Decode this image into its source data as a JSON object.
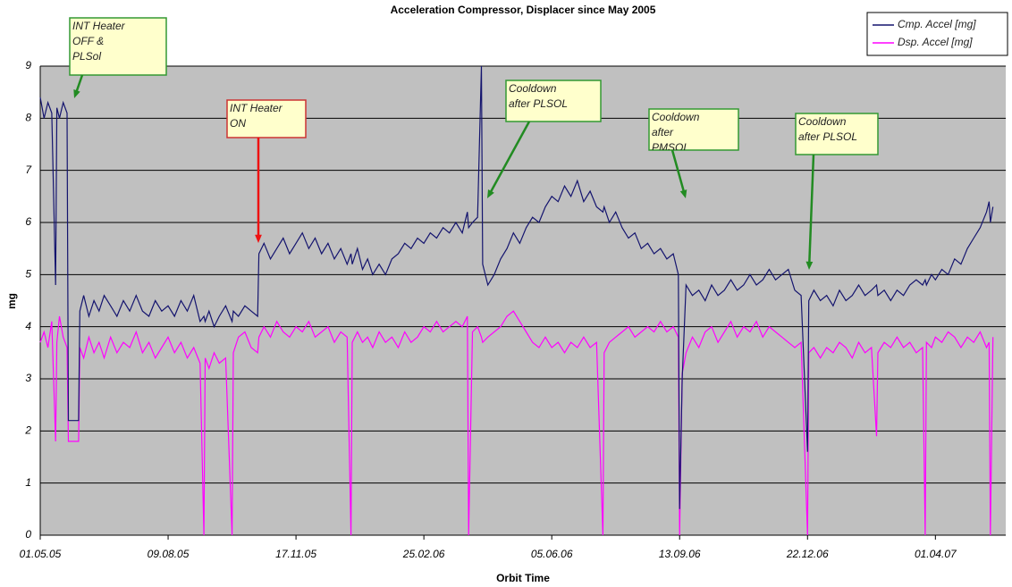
{
  "chart_data": {
    "type": "line",
    "title": "Acceleration Compressor, Displacer since May 2005",
    "x_label": "Orbit Time",
    "y_label": "mg",
    "x": [
      0,
      3,
      6,
      9,
      12,
      13,
      15,
      18,
      21,
      22,
      24,
      27,
      30,
      31,
      34,
      38,
      42,
      46,
      50,
      55,
      60,
      65,
      70,
      75,
      80,
      85,
      90,
      95,
      100,
      105,
      110,
      115,
      120,
      125,
      128,
      129,
      132,
      136,
      140,
      145,
      150,
      151,
      155,
      160,
      165,
      170,
      171,
      175,
      180,
      185,
      190,
      195,
      200,
      205,
      210,
      215,
      220,
      225,
      230,
      235,
      240,
      243,
      244,
      248,
      252,
      256,
      260,
      265,
      270,
      275,
      280,
      285,
      290,
      295,
      300,
      305,
      310,
      315,
      320,
      325,
      330,
      334,
      335,
      338,
      342,
      345,
      346,
      350,
      355,
      360,
      365,
      370,
      375,
      380,
      385,
      390,
      395,
      400,
      405,
      410,
      415,
      420,
      425,
      430,
      435,
      440,
      441,
      445,
      450,
      455,
      460,
      465,
      470,
      475,
      480,
      485,
      490,
      495,
      499,
      500,
      502,
      505,
      510,
      515,
      520,
      525,
      530,
      535,
      540,
      545,
      550,
      555,
      560,
      565,
      570,
      575,
      580,
      585,
      590,
      595,
      600,
      601,
      605,
      610,
      615,
      620,
      625,
      630,
      635,
      640,
      645,
      650,
      654,
      655,
      660,
      665,
      670,
      675,
      680,
      685,
      690,
      692,
      693,
      697,
      700,
      705,
      710,
      715,
      720,
      725,
      730,
      735,
      740,
      742,
      743,
      745
    ],
    "series": [
      {
        "name": "Cmp. Accel [mg]",
        "color": "#14146e",
        "values": [
          8.4,
          8.0,
          8.3,
          8.1,
          4.8,
          8.2,
          8.0,
          8.3,
          8.1,
          2.2,
          2.2,
          2.2,
          2.2,
          4.3,
          4.6,
          4.2,
          4.5,
          4.3,
          4.6,
          4.4,
          4.2,
          4.5,
          4.3,
          4.6,
          4.3,
          4.2,
          4.5,
          4.3,
          4.4,
          4.2,
          4.5,
          4.3,
          4.6,
          4.1,
          4.2,
          4.1,
          4.3,
          4.0,
          4.2,
          4.4,
          4.1,
          4.3,
          4.2,
          4.4,
          4.3,
          4.2,
          5.4,
          5.6,
          5.3,
          5.5,
          5.7,
          5.4,
          5.6,
          5.8,
          5.5,
          5.7,
          5.4,
          5.6,
          5.3,
          5.5,
          5.2,
          5.4,
          5.2,
          5.5,
          5.1,
          5.3,
          5.0,
          5.2,
          5.0,
          5.3,
          5.4,
          5.6,
          5.5,
          5.7,
          5.6,
          5.8,
          5.7,
          5.9,
          5.8,
          6.0,
          5.8,
          6.2,
          5.9,
          6.0,
          6.1,
          9.0,
          5.2,
          4.8,
          5.0,
          5.3,
          5.5,
          5.8,
          5.6,
          5.9,
          6.1,
          6.0,
          6.3,
          6.5,
          6.4,
          6.7,
          6.5,
          6.8,
          6.4,
          6.6,
          6.3,
          6.2,
          6.3,
          6.0,
          6.2,
          5.9,
          5.7,
          5.8,
          5.5,
          5.6,
          5.4,
          5.5,
          5.3,
          5.4,
          5.0,
          0.5,
          3.0,
          4.8,
          4.6,
          4.7,
          4.5,
          4.8,
          4.6,
          4.7,
          4.9,
          4.7,
          4.8,
          5.0,
          4.8,
          4.9,
          5.1,
          4.9,
          5.0,
          5.1,
          4.7,
          4.6,
          1.6,
          4.5,
          4.7,
          4.5,
          4.6,
          4.4,
          4.7,
          4.5,
          4.6,
          4.8,
          4.6,
          4.7,
          4.8,
          4.6,
          4.7,
          4.5,
          4.7,
          4.6,
          4.8,
          4.9,
          4.8,
          4.9,
          4.8,
          5.0,
          4.9,
          5.1,
          5.0,
          5.3,
          5.2,
          5.5,
          5.7,
          5.9,
          6.2,
          6.4,
          6.0,
          6.3
        ]
      },
      {
        "name": "Dsp. Accel [mg]",
        "color": "#ff00ff",
        "values": [
          3.7,
          3.9,
          3.6,
          4.1,
          1.8,
          3.7,
          4.2,
          3.8,
          3.6,
          1.8,
          1.8,
          1.8,
          1.8,
          3.6,
          3.4,
          3.8,
          3.5,
          3.7,
          3.4,
          3.8,
          3.5,
          3.7,
          3.6,
          3.9,
          3.5,
          3.7,
          3.4,
          3.6,
          3.8,
          3.5,
          3.7,
          3.4,
          3.6,
          3.3,
          0,
          3.4,
          3.2,
          3.5,
          3.3,
          3.4,
          0,
          3.5,
          3.8,
          3.9,
          3.6,
          3.5,
          3.8,
          4.0,
          3.8,
          4.1,
          3.9,
          3.8,
          4.0,
          3.9,
          4.1,
          3.8,
          3.9,
          4.0,
          3.7,
          3.9,
          3.8,
          0,
          3.7,
          3.9,
          3.7,
          3.8,
          3.6,
          3.9,
          3.7,
          3.8,
          3.6,
          3.9,
          3.7,
          3.8,
          4.0,
          3.9,
          4.1,
          3.9,
          4.0,
          4.1,
          4.0,
          4.2,
          0,
          3.9,
          4.0,
          3.8,
          3.7,
          3.8,
          3.9,
          4.0,
          4.2,
          4.3,
          4.1,
          3.9,
          3.7,
          3.6,
          3.8,
          3.6,
          3.7,
          3.5,
          3.7,
          3.6,
          3.8,
          3.6,
          3.7,
          0,
          3.5,
          3.7,
          3.8,
          3.9,
          4.0,
          3.8,
          3.9,
          4.0,
          3.9,
          4.1,
          3.9,
          4.0,
          3.8,
          0,
          3.1,
          3.5,
          3.8,
          3.6,
          3.9,
          4.0,
          3.7,
          3.9,
          4.1,
          3.8,
          4.0,
          3.9,
          4.1,
          3.8,
          4.0,
          3.9,
          3.8,
          3.7,
          3.6,
          3.7,
          0,
          3.5,
          3.6,
          3.4,
          3.6,
          3.5,
          3.7,
          3.6,
          3.4,
          3.7,
          3.5,
          3.6,
          1.9,
          3.5,
          3.7,
          3.6,
          3.8,
          3.6,
          3.7,
          3.5,
          3.6,
          0,
          3.7,
          3.6,
          3.8,
          3.7,
          3.9,
          3.8,
          3.6,
          3.8,
          3.7,
          3.9,
          3.6,
          3.7,
          0,
          3.8
        ]
      }
    ],
    "xlim": [
      0,
      755
    ],
    "xticks": [
      {
        "value": 0,
        "label": "01.05.05"
      },
      {
        "value": 100,
        "label": "09.08.05"
      },
      {
        "value": 200,
        "label": "17.11.05"
      },
      {
        "value": 300,
        "label": "25.02.06"
      },
      {
        "value": 400,
        "label": "05.06.06"
      },
      {
        "value": 500,
        "label": "13.09.06"
      },
      {
        "value": 600,
        "label": "22.12.06"
      },
      {
        "value": 700,
        "label": "01.04.07"
      }
    ],
    "ylim": [
      0,
      9
    ],
    "yticks": [
      0,
      1,
      2,
      3,
      4,
      5,
      6,
      7,
      8,
      9
    ],
    "grid": true,
    "legend": "top-right",
    "annotations": [
      {
        "lines": [
          "INT Heater",
          "OFF &",
          "PLSol"
        ]
      },
      {
        "lines": [
          "INT Heater",
          "ON"
        ]
      },
      {
        "lines": [
          "Cooldown",
          "after PLSOL"
        ]
      },
      {
        "lines": [
          "Cooldown",
          "after",
          "PMSOL"
        ]
      },
      {
        "lines": [
          "Cooldown",
          "after PLSOL"
        ]
      }
    ]
  }
}
